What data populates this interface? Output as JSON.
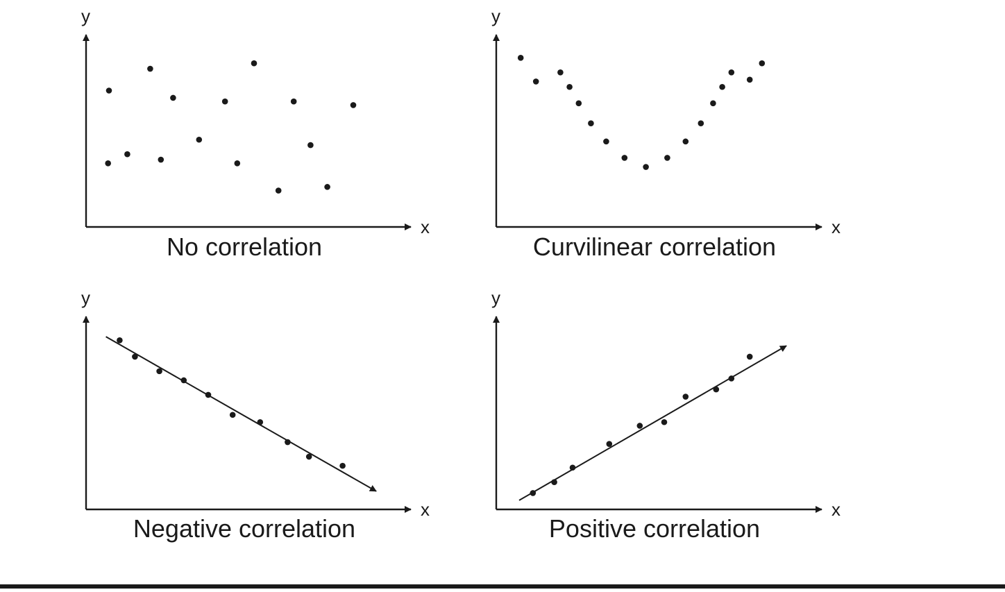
{
  "chart_data": [
    {
      "type": "scatter",
      "title": "No correlation",
      "xlabel": "x",
      "ylabel": "y",
      "xlim": [
        0,
        10
      ],
      "ylim": [
        0,
        10
      ],
      "grid": false,
      "trendline": null,
      "points": [
        {
          "x": 0.75,
          "y": 7.5
        },
        {
          "x": 0.72,
          "y": 3.5
        },
        {
          "x": 1.35,
          "y": 4.0
        },
        {
          "x": 2.1,
          "y": 8.7
        },
        {
          "x": 2.45,
          "y": 3.7
        },
        {
          "x": 2.85,
          "y": 7.1
        },
        {
          "x": 3.7,
          "y": 4.8
        },
        {
          "x": 4.55,
          "y": 6.9
        },
        {
          "x": 4.95,
          "y": 3.5
        },
        {
          "x": 5.5,
          "y": 9.0
        },
        {
          "x": 6.3,
          "y": 2.0
        },
        {
          "x": 6.8,
          "y": 6.9
        },
        {
          "x": 7.35,
          "y": 4.5
        },
        {
          "x": 7.9,
          "y": 2.2
        },
        {
          "x": 8.75,
          "y": 6.7
        }
      ]
    },
    {
      "type": "scatter",
      "title": "Curvilinear correlation",
      "xlabel": "x",
      "ylabel": "y",
      "xlim": [
        0,
        10
      ],
      "ylim": [
        0,
        10
      ],
      "grid": false,
      "trendline": null,
      "points": [
        {
          "x": 0.8,
          "y": 9.3
        },
        {
          "x": 1.3,
          "y": 8.0
        },
        {
          "x": 2.1,
          "y": 8.5
        },
        {
          "x": 2.4,
          "y": 7.7
        },
        {
          "x": 2.7,
          "y": 6.8
        },
        {
          "x": 3.1,
          "y": 5.7
        },
        {
          "x": 3.6,
          "y": 4.7
        },
        {
          "x": 4.2,
          "y": 3.8
        },
        {
          "x": 4.9,
          "y": 3.3
        },
        {
          "x": 5.6,
          "y": 3.8
        },
        {
          "x": 6.2,
          "y": 4.7
        },
        {
          "x": 6.7,
          "y": 5.7
        },
        {
          "x": 7.1,
          "y": 6.8
        },
        {
          "x": 7.4,
          "y": 7.7
        },
        {
          "x": 7.7,
          "y": 8.5
        },
        {
          "x": 8.3,
          "y": 8.1
        },
        {
          "x": 8.7,
          "y": 9.0
        }
      ]
    },
    {
      "type": "scatter",
      "title": "Negative correlation",
      "xlabel": "x",
      "ylabel": "y",
      "xlim": [
        0,
        10
      ],
      "ylim": [
        0,
        10
      ],
      "grid": false,
      "trendline": {
        "from": {
          "x": 0.65,
          "y": 9.5
        },
        "to": {
          "x": 9.5,
          "y": 1.0
        }
      },
      "points": [
        {
          "x": 1.1,
          "y": 9.3
        },
        {
          "x": 1.6,
          "y": 8.4
        },
        {
          "x": 2.4,
          "y": 7.6
        },
        {
          "x": 3.2,
          "y": 7.1
        },
        {
          "x": 4.0,
          "y": 6.3
        },
        {
          "x": 4.8,
          "y": 5.2
        },
        {
          "x": 5.7,
          "y": 4.8
        },
        {
          "x": 6.6,
          "y": 3.7
        },
        {
          "x": 7.3,
          "y": 2.9
        },
        {
          "x": 8.4,
          "y": 2.4
        }
      ]
    },
    {
      "type": "scatter",
      "title": "Positive correlation",
      "xlabel": "x",
      "ylabel": "y",
      "xlim": [
        0,
        10
      ],
      "ylim": [
        0,
        10
      ],
      "grid": false,
      "trendline": {
        "from": {
          "x": 0.75,
          "y": 0.5
        },
        "to": {
          "x": 9.5,
          "y": 9.0
        }
      },
      "points": [
        {
          "x": 1.2,
          "y": 0.9
        },
        {
          "x": 1.9,
          "y": 1.5
        },
        {
          "x": 2.5,
          "y": 2.3
        },
        {
          "x": 3.7,
          "y": 3.6
        },
        {
          "x": 4.7,
          "y": 4.6
        },
        {
          "x": 5.5,
          "y": 4.8
        },
        {
          "x": 6.2,
          "y": 6.2
        },
        {
          "x": 7.2,
          "y": 6.6
        },
        {
          "x": 7.7,
          "y": 7.2
        },
        {
          "x": 8.3,
          "y": 8.4
        }
      ]
    }
  ]
}
